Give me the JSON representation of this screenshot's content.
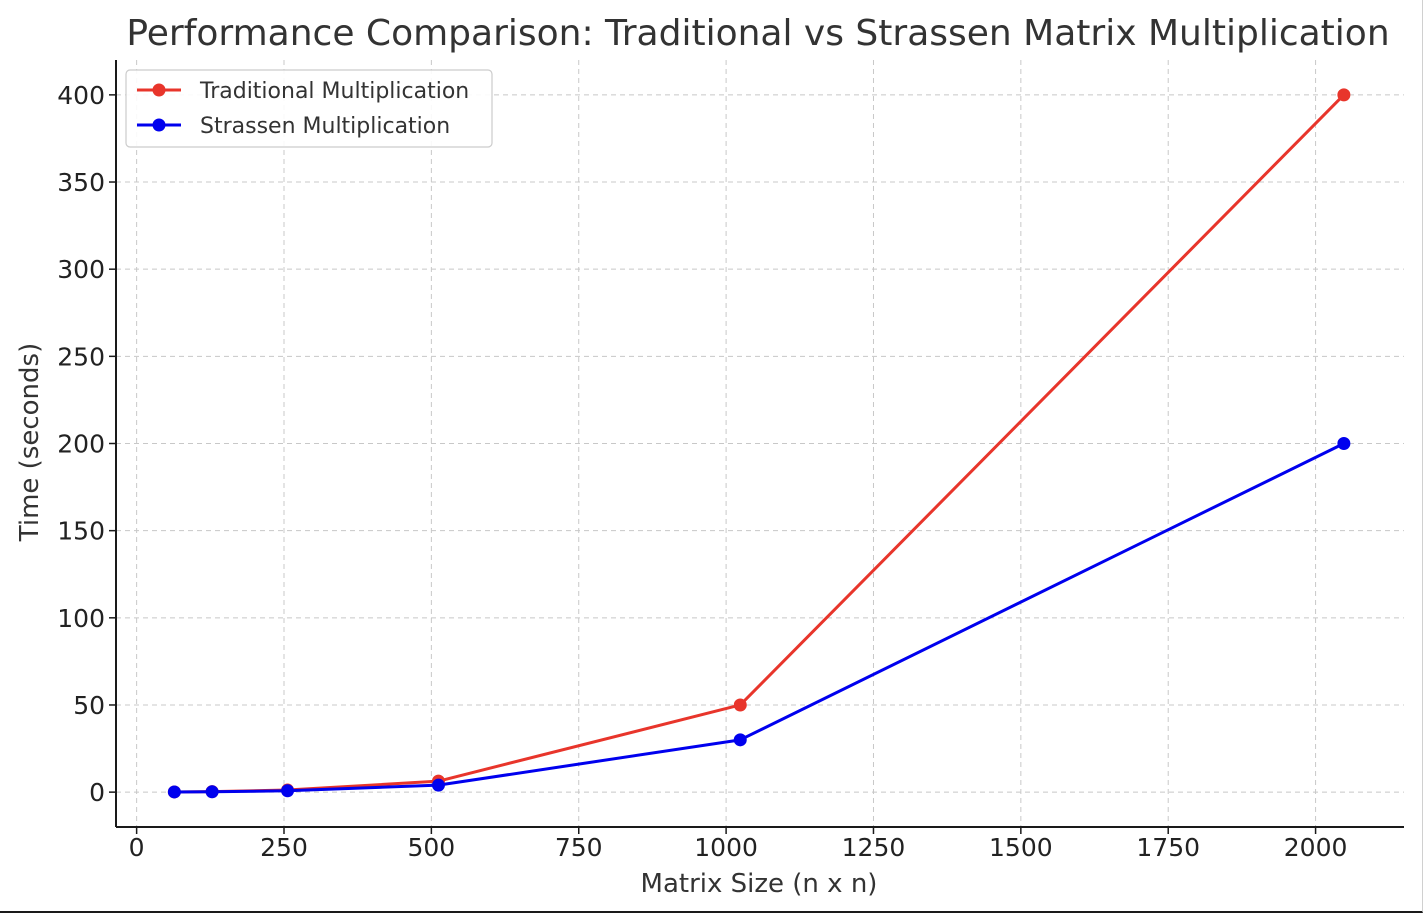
{
  "chart_data": {
    "type": "line",
    "title": "Performance Comparison: Traditional vs Strassen Matrix Multiplication",
    "xlabel": "Matrix Size (n x n)",
    "ylabel": "Time (seconds)",
    "xlim": [
      -35,
      2150
    ],
    "ylim": [
      -20,
      420
    ],
    "x_ticks": [
      0,
      250,
      500,
      750,
      1000,
      1250,
      1500,
      1750,
      2000
    ],
    "y_ticks": [
      0,
      50,
      100,
      150,
      200,
      250,
      300,
      350,
      400
    ],
    "grid": true,
    "legend_position": "upper-left",
    "series": [
      {
        "name": "Traditional Multiplication",
        "color": "#e8352b",
        "x": [
          64,
          128,
          256,
          512,
          1024,
          2048
        ],
        "values": [
          0.1,
          0.3,
          1.2,
          6.3,
          50,
          400
        ]
      },
      {
        "name": "Strassen Multiplication",
        "color": "#0000ee",
        "x": [
          64,
          128,
          256,
          512,
          1024,
          2048
        ],
        "values": [
          0.1,
          0.2,
          0.8,
          4,
          30,
          200
        ]
      }
    ]
  }
}
